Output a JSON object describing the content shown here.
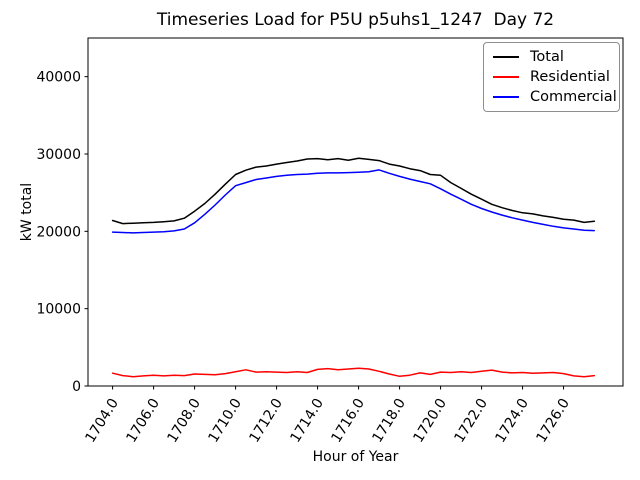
{
  "chart_data": {
    "type": "line",
    "title": "Timeseries Load for P5U p5uhs1_1247  Day 72",
    "xlabel": "Hour of Year",
    "ylabel": "kW total",
    "xlim": [
      1702.8,
      1728.9
    ],
    "ylim": [
      0,
      45000
    ],
    "xticks": [
      1704,
      1706,
      1708,
      1710,
      1712,
      1714,
      1716,
      1718,
      1720,
      1722,
      1724,
      1726
    ],
    "yticks": [
      0,
      10000,
      20000,
      30000,
      40000
    ],
    "grid": false,
    "legend": {
      "position": "upper right",
      "entries": [
        "Total",
        "Residential",
        "Commercial"
      ]
    },
    "x": [
      1704.0,
      1704.5,
      1705.0,
      1705.5,
      1706.0,
      1706.5,
      1707.0,
      1707.5,
      1708.0,
      1708.5,
      1709.0,
      1709.5,
      1710.0,
      1710.5,
      1711.0,
      1711.5,
      1712.0,
      1712.5,
      1713.0,
      1713.5,
      1714.0,
      1714.5,
      1715.0,
      1715.5,
      1716.0,
      1716.5,
      1717.0,
      1717.5,
      1718.0,
      1718.5,
      1719.0,
      1719.5,
      1720.0,
      1720.5,
      1721.0,
      1721.5,
      1722.0,
      1722.5,
      1723.0,
      1723.5,
      1724.0,
      1724.5,
      1725.0,
      1725.5,
      1726.0,
      1726.5,
      1727.0,
      1727.5
    ],
    "series": [
      {
        "name": "Total",
        "color": "#000000",
        "values": [
          21400,
          21000,
          21050,
          21100,
          21150,
          21250,
          21350,
          21700,
          22600,
          23600,
          24800,
          26100,
          27350,
          27900,
          28300,
          28450,
          28700,
          28900,
          29100,
          29350,
          29400,
          29250,
          29400,
          29200,
          29450,
          29300,
          29150,
          28700,
          28450,
          28100,
          27850,
          27350,
          27250,
          26300,
          25550,
          24800,
          24150,
          23500,
          23050,
          22700,
          22400,
          22250,
          22000,
          21800,
          21550,
          21450,
          21150,
          21300
        ]
      },
      {
        "name": "Residential",
        "color": "#ff0000",
        "values": [
          1650,
          1350,
          1200,
          1300,
          1400,
          1300,
          1400,
          1350,
          1550,
          1500,
          1450,
          1600,
          1850,
          2100,
          1800,
          1850,
          1800,
          1750,
          1850,
          1750,
          2150,
          2250,
          2100,
          2200,
          2300,
          2200,
          1900,
          1550,
          1250,
          1400,
          1700,
          1500,
          1800,
          1750,
          1850,
          1750,
          1900,
          2050,
          1800,
          1700,
          1750,
          1650,
          1700,
          1750,
          1600,
          1300,
          1200,
          1350
        ]
      },
      {
        "name": "Commercial",
        "color": "#0000ff",
        "values": [
          19900,
          19850,
          19800,
          19850,
          19900,
          19950,
          20050,
          20300,
          21100,
          22200,
          23400,
          24700,
          25900,
          26300,
          26700,
          26900,
          27100,
          27250,
          27350,
          27400,
          27500,
          27550,
          27550,
          27600,
          27650,
          27700,
          27950,
          27500,
          27100,
          26750,
          26450,
          26150,
          25500,
          24800,
          24150,
          23500,
          22950,
          22500,
          22100,
          21750,
          21450,
          21150,
          20900,
          20650,
          20450,
          20300,
          20150,
          20100
        ]
      }
    ]
  }
}
